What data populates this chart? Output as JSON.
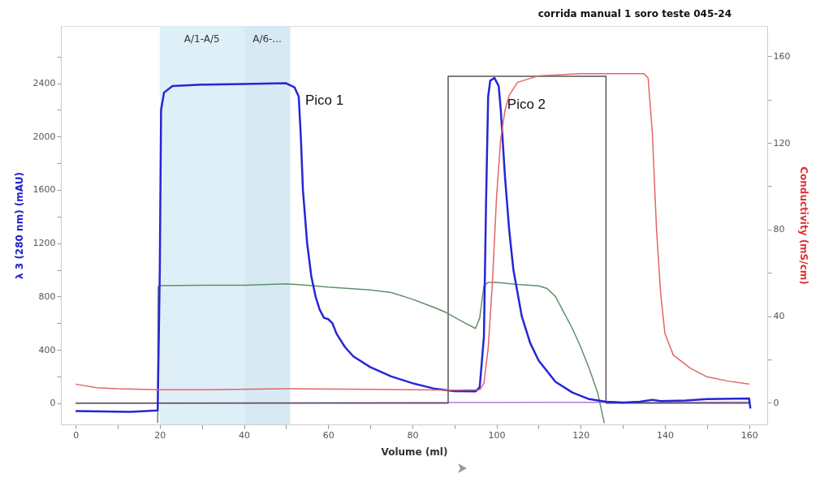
{
  "chart_data": {
    "type": "line",
    "title": "corrida manual 1 soro teste 045-24",
    "xlabel": "Volume (ml)",
    "ylabel": "λ 3 (280 nm) (mAU)",
    "y2label": "Conductivity (mS/cm)",
    "xlim": [
      -3.5,
      164.3
    ],
    "ylim": [
      -160,
      2830
    ],
    "y2lim": [
      -10,
      174
    ],
    "xticks": [
      0,
      {
        "value": 10,
        "label": null
      },
      20,
      {
        "value": 30,
        "label": null
      },
      40,
      {
        "value": 50,
        "label": null
      },
      60,
      {
        "value": 70,
        "label": null
      },
      80,
      {
        "value": 90,
        "label": null
      },
      100,
      {
        "value": 110,
        "label": null
      },
      120,
      {
        "value": 130,
        "label": null
      },
      140,
      {
        "value": 150,
        "label": null
      },
      160
    ],
    "yticks": [
      0,
      {
        "value": 200,
        "label": null
      },
      400,
      {
        "value": 600,
        "label": null
      },
      800,
      {
        "value": 1000,
        "label": null
      },
      1200,
      {
        "value": 1400,
        "label": null
      },
      1600,
      {
        "value": 1800,
        "label": null
      },
      2000,
      {
        "value": 2200,
        "label": null
      },
      2400,
      {
        "value": 2600,
        "label": null
      }
    ],
    "y2ticks": [
      0,
      {
        "value": 20,
        "label": null
      },
      40,
      {
        "value": 60,
        "label": null
      },
      80,
      {
        "value": 100,
        "label": null
      },
      120,
      {
        "value": 140,
        "label": null
      },
      160
    ],
    "grid": false,
    "bands": [
      {
        "axis": "x",
        "from": 20,
        "to": 40,
        "label": "A/1-A/5",
        "color": "#dcedf6"
      },
      {
        "axis": "x",
        "from": 40,
        "to": 51,
        "label": "A/6-...",
        "color": "#d3e8f3"
      }
    ],
    "series": [
      {
        "color": "#b47ad6",
        "x": [
          0,
          160
        ],
        "values": [
          0,
          8
        ]
      },
      {
        "color": "#555555",
        "x": [
          0,
          88.5,
          88.5,
          126,
          126,
          160
        ],
        "values": [
          0,
          0,
          2452,
          2452,
          0,
          0
        ]
      },
      {
        "color": "#62906a",
        "x": [
          19.5,
          19.6,
          20,
          30,
          40,
          50,
          55,
          60,
          70,
          75,
          80,
          85,
          88,
          92,
          95,
          96,
          97,
          98,
          100,
          105,
          110,
          112,
          114,
          116,
          118,
          120,
          122,
          124,
          125.6
        ],
        "values": [
          -150,
          870,
          882,
          885,
          885,
          895,
          885,
          870,
          850,
          830,
          780,
          720,
          680,
          610,
          560,
          640,
          880,
          906,
          905,
          890,
          880,
          860,
          800,
          680,
          560,
          420,
          260,
          80,
          -150
        ]
      },
      {
        "color": "#e06666",
        "axis": "y2",
        "x": [
          0,
          5,
          10,
          20,
          30,
          50,
          70,
          80,
          90,
          96,
          97,
          98,
          99,
          100,
          101,
          102,
          103,
          105,
          110,
          120,
          130,
          135,
          136,
          137,
          138,
          139,
          140,
          142,
          144,
          146,
          150,
          155,
          160
        ],
        "values": [
          8.6,
          7,
          6.5,
          6,
          6,
          6.5,
          6.2,
          6,
          5.8,
          6,
          9,
          25,
          55,
          95,
          122,
          135,
          142,
          148,
          151,
          152,
          152,
          152,
          150,
          125,
          80,
          50,
          32,
          22,
          19,
          16,
          12,
          10,
          8.6
        ]
      },
      {
        "color": "#2626d4",
        "x": [
          0,
          13,
          19.5,
          20,
          20.3,
          21,
          23,
          30,
          40,
          50,
          52,
          53,
          53.5,
          54,
          55,
          56,
          57,
          58,
          59,
          60,
          61,
          62,
          64,
          66,
          70,
          75,
          80,
          85,
          90,
          95,
          96,
          97,
          97.5,
          98,
          98.5,
          99.5,
          100.5,
          101,
          102,
          103,
          104,
          106,
          108,
          110,
          114,
          118,
          122,
          126,
          130,
          134,
          137,
          139,
          145,
          150,
          160,
          160.3
        ],
        "values": [
          -60,
          -65,
          -55,
          1000,
          2200,
          2330,
          2380,
          2390,
          2395,
          2400,
          2370,
          2300,
          2000,
          1600,
          1200,
          950,
          800,
          700,
          640,
          630,
          600,
          520,
          420,
          350,
          270,
          200,
          150,
          110,
          90,
          88,
          120,
          500,
          1500,
          2300,
          2420,
          2440,
          2380,
          2200,
          1700,
          1300,
          1000,
          650,
          450,
          320,
          160,
          80,
          30,
          10,
          5,
          10,
          25,
          15,
          20,
          30,
          35,
          -40
        ]
      }
    ],
    "annotations": [
      {
        "text": "Pico 1",
        "x": 53,
        "y": 2270
      },
      {
        "text": "Pico 2",
        "x": 101,
        "y": 2240
      }
    ]
  }
}
